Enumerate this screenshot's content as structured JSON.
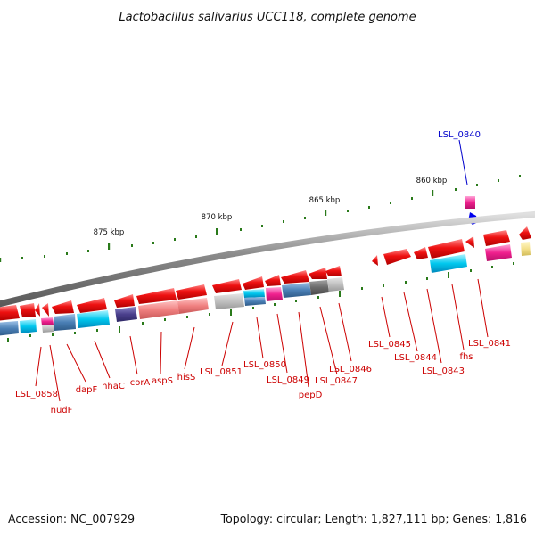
{
  "title": "Lactobacillus salivarius UCC118, complete genome",
  "footer": {
    "accession": "Accession: NC_007929",
    "summary": "Topology: circular; Length: 1,827,111 bp; Genes: 1,816"
  },
  "ruler": [
    {
      "label": "875 kbp"
    },
    {
      "label": "870 kbp"
    },
    {
      "label": "865 kbp"
    },
    {
      "label": "860 kbp"
    }
  ],
  "colors": {
    "gene_arrow": "#ee1111",
    "label_red": "#cc0000",
    "label_blue": "#0000cc",
    "backbone": "#888888",
    "tick": "#2a7a1a"
  },
  "gene_labels": [
    {
      "text": "LSL_0858",
      "color": "#cc0000"
    },
    {
      "text": "nudF",
      "color": "#cc0000"
    },
    {
      "text": "dapF",
      "color": "#cc0000"
    },
    {
      "text": "nhaC",
      "color": "#cc0000"
    },
    {
      "text": "corA",
      "color": "#cc0000"
    },
    {
      "text": "aspS",
      "color": "#cc0000"
    },
    {
      "text": "hisS",
      "color": "#cc0000"
    },
    {
      "text": "LSL_0851",
      "color": "#cc0000"
    },
    {
      "text": "LSL_0850",
      "color": "#cc0000"
    },
    {
      "text": "LSL_0849",
      "color": "#cc0000"
    },
    {
      "text": "pepD",
      "color": "#cc0000"
    },
    {
      "text": "LSL_0847",
      "color": "#cc0000"
    },
    {
      "text": "LSL_0846",
      "color": "#cc0000"
    },
    {
      "text": "LSL_0845",
      "color": "#cc0000"
    },
    {
      "text": "LSL_0844",
      "color": "#cc0000"
    },
    {
      "text": "LSL_0843",
      "color": "#cc0000"
    },
    {
      "text": "fhs",
      "color": "#cc0000"
    },
    {
      "text": "LSL_0841",
      "color": "#cc0000"
    },
    {
      "text": "LSL_0840",
      "color": "#0000cc"
    }
  ]
}
